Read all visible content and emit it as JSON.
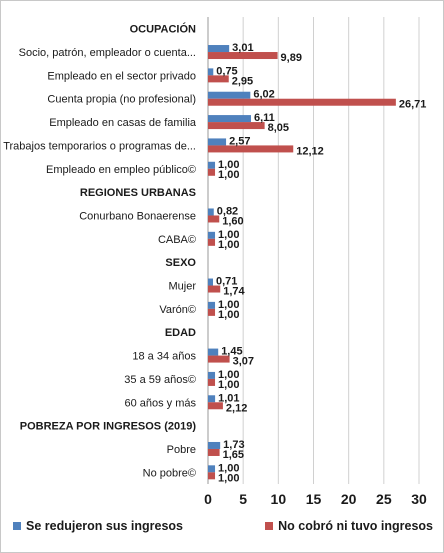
{
  "chart_data": {
    "type": "bar",
    "orientation": "horizontal",
    "xlim": [
      0,
      30
    ],
    "x_ticks": [
      "0",
      "5",
      "10",
      "15",
      "20",
      "25",
      "30"
    ],
    "grid": true,
    "legend_position": "bottom",
    "categories": [
      {
        "label": "OCUPACIÓN",
        "header": true
      },
      {
        "label": "Socio, patrón, empleador o cuenta...",
        "v1": 3.01,
        "v2": 9.89,
        "l1": "3,01",
        "l2": "9,89"
      },
      {
        "label": "Empleado en el sector privado",
        "v1": 0.75,
        "v2": 2.95,
        "l1": "0,75",
        "l2": "2,95"
      },
      {
        "label": "Cuenta propia (no profesional)",
        "v1": 6.02,
        "v2": 26.71,
        "l1": "6,02",
        "l2": "26,71"
      },
      {
        "label": "Empleado en casas de familia",
        "v1": 6.11,
        "v2": 8.05,
        "l1": "6,11",
        "l2": "8,05"
      },
      {
        "label": "Trabajos temporarios o programas de...",
        "v1": 2.57,
        "v2": 12.12,
        "l1": "2,57",
        "l2": "12,12"
      },
      {
        "label": "Empleado en empleo público©",
        "v1": 1.0,
        "v2": 1.0,
        "l1": "1,00",
        "l2": "1,00"
      },
      {
        "label": "REGIONES URBANAS",
        "header": true
      },
      {
        "label": "Conurbano Bonaerense",
        "v1": 0.82,
        "v2": 1.6,
        "l1": "0,82",
        "l2": "1,60"
      },
      {
        "label": "CABA©",
        "v1": 1.0,
        "v2": 1.0,
        "l1": "1,00",
        "l2": "1,00"
      },
      {
        "label": "SEXO",
        "header": true
      },
      {
        "label": "Mujer",
        "v1": 0.71,
        "v2": 1.74,
        "l1": "0,71",
        "l2": "1,74"
      },
      {
        "label": "Varón©",
        "v1": 1.0,
        "v2": 1.0,
        "l1": "1,00",
        "l2": "1,00"
      },
      {
        "label": "EDAD",
        "header": true
      },
      {
        "label": "18 a 34 años",
        "v1": 1.45,
        "v2": 3.07,
        "l1": "1,45",
        "l2": "3,07"
      },
      {
        "label": "35 a 59 años©",
        "v1": 1.0,
        "v2": 1.0,
        "l1": "1,00",
        "l2": "1,00"
      },
      {
        "label": "60 años y más",
        "v1": 1.01,
        "v2": 2.12,
        "l1": "1,01",
        "l2": "2,12"
      },
      {
        "label": "POBREZA POR INGRESOS (2019)",
        "header": true
      },
      {
        "label": "Pobre",
        "v1": 1.73,
        "v2": 1.65,
        "l1": "1,73",
        "l2": "1,65"
      },
      {
        "label": "No pobre©",
        "v1": 1.0,
        "v2": 1.0,
        "l1": "1,00",
        "l2": "1,00"
      }
    ],
    "series": [
      {
        "name": "Se redujeron sus ingresos",
        "color": "#4f81bd"
      },
      {
        "name": "No cobró ni tuvo ingresos",
        "color": "#c0504d"
      }
    ]
  }
}
